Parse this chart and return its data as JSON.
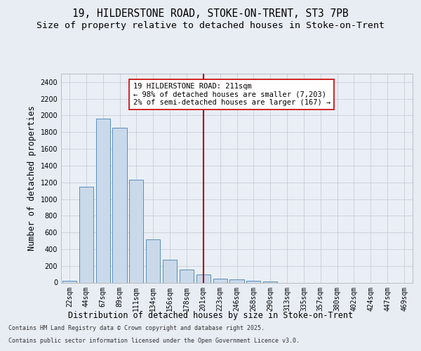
{
  "title1": "19, HILDERSTONE ROAD, STOKE-ON-TRENT, ST3 7PB",
  "title2": "Size of property relative to detached houses in Stoke-on-Trent",
  "xlabel": "Distribution of detached houses by size in Stoke-on-Trent",
  "ylabel": "Number of detached properties",
  "categories": [
    "22sqm",
    "44sqm",
    "67sqm",
    "89sqm",
    "111sqm",
    "134sqm",
    "156sqm",
    "178sqm",
    "201sqm",
    "223sqm",
    "246sqm",
    "268sqm",
    "290sqm",
    "313sqm",
    "335sqm",
    "357sqm",
    "380sqm",
    "402sqm",
    "424sqm",
    "447sqm",
    "469sqm"
  ],
  "values": [
    25,
    1150,
    1960,
    1850,
    1230,
    515,
    275,
    155,
    95,
    50,
    42,
    25,
    15,
    0,
    0,
    0,
    0,
    0,
    0,
    0,
    0
  ],
  "bar_color": "#c9d9ea",
  "bar_edge_color": "#5b8db8",
  "vline_x_index": 8,
  "vline_color": "#aa0000",
  "annotation_text": "19 HILDERSTONE ROAD: 211sqm\n← 98% of detached houses are smaller (7,203)\n2% of semi-detached houses are larger (167) →",
  "annotation_box_color": "#ffffff",
  "annotation_box_edge_color": "#cc0000",
  "ylim": [
    0,
    2500
  ],
  "yticks": [
    0,
    200,
    400,
    600,
    800,
    1000,
    1200,
    1400,
    1600,
    1800,
    2000,
    2200,
    2400
  ],
  "bg_color": "#e8edf4",
  "plot_bg_color": "#eaeff6",
  "grid_color": "#c8cdd8",
  "footer1": "Contains HM Land Registry data © Crown copyright and database right 2025.",
  "footer2": "Contains public sector information licensed under the Open Government Licence v3.0.",
  "title_fontsize": 10.5,
  "subtitle_fontsize": 9.5,
  "tick_fontsize": 7,
  "label_fontsize": 8.5,
  "annotation_fontsize": 7.5,
  "footer_fontsize": 6.0
}
